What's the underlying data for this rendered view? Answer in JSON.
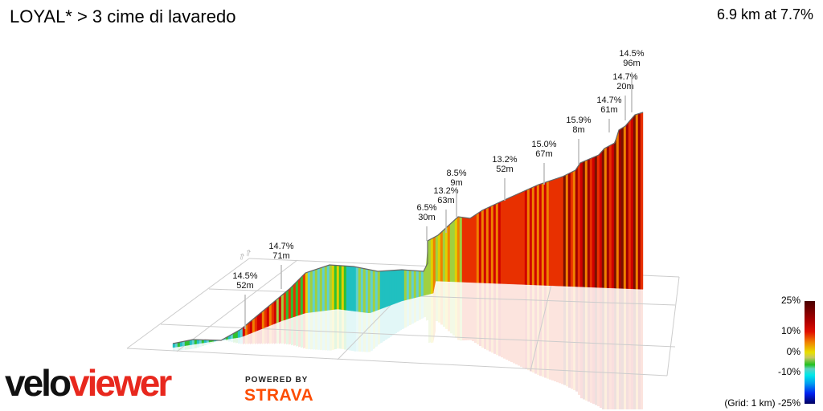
{
  "header": {
    "title": "LOYAL* > 3 cime di lavaredo",
    "summary": "6.9 km at 7.7%"
  },
  "annotations": [
    {
      "grade": "14.5%",
      "length": "52m"
    },
    {
      "grade": "14.7%",
      "length": "71m"
    },
    {
      "grade": "6.5%",
      "length": "30m"
    },
    {
      "grade": "13.2%",
      "length": "63m"
    },
    {
      "grade": "8.5%",
      "length": "9m"
    },
    {
      "grade": "13.2%",
      "length": "52m"
    },
    {
      "grade": "15.0%",
      "length": "67m"
    },
    {
      "grade": "15.9%",
      "length": "8m"
    },
    {
      "grade": "14.7%",
      "length": "61m"
    },
    {
      "grade": "14.7%",
      "length": "20m"
    },
    {
      "grade": "14.5%",
      "length": "96m"
    }
  ],
  "legend": {
    "max": "25%",
    "high": "10%",
    "zero": "0%",
    "low": "-10%",
    "min": "(Grid: 1 km) -25%",
    "colors": [
      "#4a0000",
      "#e01000",
      "#f08000",
      "#e8e000",
      "#20c020",
      "#00e8e8",
      "#0020f0",
      "#000060"
    ]
  },
  "branding": {
    "logo_part1": "velo",
    "logo_part2": "viewer",
    "powered_by": "POWERED BY",
    "strava": "STRAVA",
    "logo_color": "#e8281e",
    "strava_color": "#fc4c02"
  }
}
